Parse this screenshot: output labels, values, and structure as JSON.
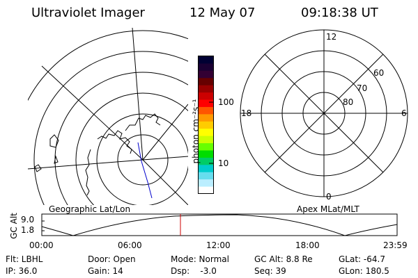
{
  "header": {
    "instrument": "Ultraviolet Imager",
    "date": "12 May 07",
    "time": "09:18:38 UT"
  },
  "colorbar": {
    "unit_label": "photon cm⁻²s⁻¹",
    "ticks": [
      "100",
      "10"
    ],
    "colors": [
      "#000033",
      "#1a0033",
      "#330033",
      "#660000",
      "#990000",
      "#cc0000",
      "#ff0000",
      "#ff5500",
      "#ff9900",
      "#ffcc00",
      "#ffff00",
      "#ccff00",
      "#66ff00",
      "#00dd00",
      "#00cc66",
      "#00cccc",
      "#66ddee",
      "#bbeeff",
      "#ffffff"
    ]
  },
  "polar_labels": {
    "top": "12",
    "left": "18",
    "right": "6",
    "bottom": "0",
    "ring_60": "60",
    "ring_70": "70",
    "ring_80": "80"
  },
  "subtitles": {
    "left": "Geographic Lat/Lon",
    "right": "Apex MLat/MLT"
  },
  "altitude_plot": {
    "ylabel": "GC Alt",
    "yticks": [
      "9.0",
      "1.8"
    ],
    "xticks": [
      "00:00",
      "06:00",
      "12:00",
      "18:00",
      "23:59"
    ],
    "marker_color": "#cc0000"
  },
  "info": {
    "filter": "Flt: LBHL",
    "ip": "IP: 36.0",
    "door": "Door: Open",
    "gain": "Gain: 14",
    "mode": "Mode: Normal",
    "dsp": "Dsp:    -3.0",
    "gc_alt": "GC Alt: 8.8 Re",
    "seq": "Seq: 39",
    "glat": "GLat: -64.7",
    "glon": "GLon: 180.5"
  }
}
